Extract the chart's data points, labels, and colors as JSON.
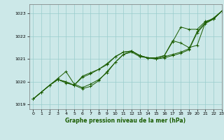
{
  "bg_color": "#cce8e8",
  "grid_color": "#99cccc",
  "line_color": "#1a5c00",
  "title": "Graphe pression niveau de la mer (hPa)",
  "xlim": [
    -0.5,
    23
  ],
  "ylim": [
    1018.8,
    1023.4
  ],
  "yticks": [
    1019,
    1020,
    1021,
    1022,
    1023
  ],
  "xticks": [
    0,
    1,
    2,
    3,
    4,
    5,
    6,
    7,
    8,
    9,
    10,
    11,
    12,
    13,
    14,
    15,
    16,
    17,
    18,
    19,
    20,
    21,
    22,
    23
  ],
  "series": [
    [
      1019.25,
      1019.55,
      1019.85,
      1020.15,
      1020.45,
      1019.9,
      1019.75,
      1019.9,
      1020.1,
      1020.4,
      1020.85,
      1021.2,
      1021.35,
      1021.15,
      1021.05,
      1021.0,
      1021.05,
      1021.15,
      1021.25,
      1021.4,
      1022.15,
      1022.55,
      1022.75,
      1023.1
    ],
    [
      1019.25,
      1019.55,
      1019.85,
      1020.1,
      1019.95,
      1019.85,
      1019.7,
      1019.8,
      1020.05,
      1020.45,
      1020.85,
      1021.2,
      1021.3,
      1021.1,
      1021.05,
      1021.0,
      1021.1,
      1021.2,
      1021.3,
      1021.45,
      1022.2,
      1022.6,
      1022.8,
      1023.1
    ],
    [
      1019.25,
      1019.55,
      1019.85,
      1020.1,
      1020.0,
      1019.85,
      1020.25,
      1020.4,
      1020.55,
      1020.75,
      1021.1,
      1021.3,
      1021.35,
      1021.15,
      1021.05,
      1021.05,
      1021.15,
      1021.8,
      1021.7,
      1021.5,
      1021.6,
      1022.6,
      1022.75,
      1023.1
    ],
    [
      1019.25,
      1019.55,
      1019.85,
      1020.1,
      1020.0,
      1019.85,
      1020.2,
      1020.35,
      1020.55,
      1020.8,
      1021.1,
      1021.3,
      1021.35,
      1021.15,
      1021.05,
      1021.05,
      1021.15,
      1021.75,
      1022.4,
      1022.3,
      1022.3,
      1022.65,
      1022.75,
      1023.1
    ]
  ]
}
